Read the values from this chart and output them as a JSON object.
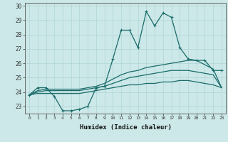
{
  "title": "",
  "xlabel": "Humidex (Indice chaleur)",
  "xlim": [
    -0.5,
    23.5
  ],
  "ylim": [
    22.5,
    30.2
  ],
  "yticks": [
    23,
    24,
    25,
    26,
    27,
    28,
    29,
    30
  ],
  "xticks": [
    0,
    1,
    2,
    3,
    4,
    5,
    6,
    7,
    8,
    9,
    10,
    11,
    12,
    13,
    14,
    15,
    16,
    17,
    18,
    19,
    20,
    21,
    22,
    23
  ],
  "bg_color": "#cce8e8",
  "line_color": "#1a6b6b",
  "grid_color": "#aed4d4",
  "line1_x": [
    0,
    1,
    2,
    3,
    4,
    5,
    6,
    7,
    8,
    9,
    10,
    11,
    12,
    13,
    14,
    15,
    16,
    17,
    18,
    19,
    20,
    21,
    22,
    23
  ],
  "line1_y": [
    23.8,
    24.3,
    24.3,
    23.7,
    22.7,
    22.7,
    22.8,
    23.0,
    24.3,
    24.4,
    26.3,
    28.3,
    28.3,
    27.1,
    29.6,
    28.6,
    29.5,
    29.2,
    27.1,
    26.3,
    26.2,
    26.2,
    25.5,
    25.5
  ],
  "line2_x": [
    0,
    1,
    2,
    3,
    4,
    5,
    6,
    7,
    8,
    9,
    10,
    11,
    12,
    13,
    14,
    15,
    16,
    17,
    18,
    19,
    20,
    21,
    22,
    23
  ],
  "line2_y": [
    23.8,
    24.1,
    24.2,
    24.2,
    24.2,
    24.2,
    24.2,
    24.3,
    24.4,
    24.6,
    24.9,
    25.2,
    25.4,
    25.5,
    25.7,
    25.8,
    25.9,
    26.0,
    26.1,
    26.2,
    26.2,
    25.9,
    25.6,
    24.3
  ],
  "line3_x": [
    0,
    1,
    2,
    3,
    4,
    5,
    6,
    7,
    8,
    9,
    10,
    11,
    12,
    13,
    14,
    15,
    16,
    17,
    18,
    19,
    20,
    21,
    22,
    23
  ],
  "line3_y": [
    23.8,
    24.0,
    24.1,
    24.1,
    24.1,
    24.1,
    24.1,
    24.2,
    24.3,
    24.4,
    24.6,
    24.8,
    25.0,
    25.1,
    25.2,
    25.3,
    25.4,
    25.5,
    25.5,
    25.5,
    25.4,
    25.3,
    25.2,
    24.3
  ],
  "line4_x": [
    0,
    1,
    2,
    3,
    4,
    5,
    6,
    7,
    8,
    9,
    10,
    11,
    12,
    13,
    14,
    15,
    16,
    17,
    18,
    19,
    20,
    21,
    22,
    23
  ],
  "line4_y": [
    23.8,
    23.9,
    23.9,
    23.9,
    23.9,
    23.9,
    23.9,
    24.0,
    24.1,
    24.2,
    24.3,
    24.4,
    24.5,
    24.5,
    24.6,
    24.6,
    24.7,
    24.7,
    24.8,
    24.8,
    24.7,
    24.6,
    24.5,
    24.3
  ]
}
